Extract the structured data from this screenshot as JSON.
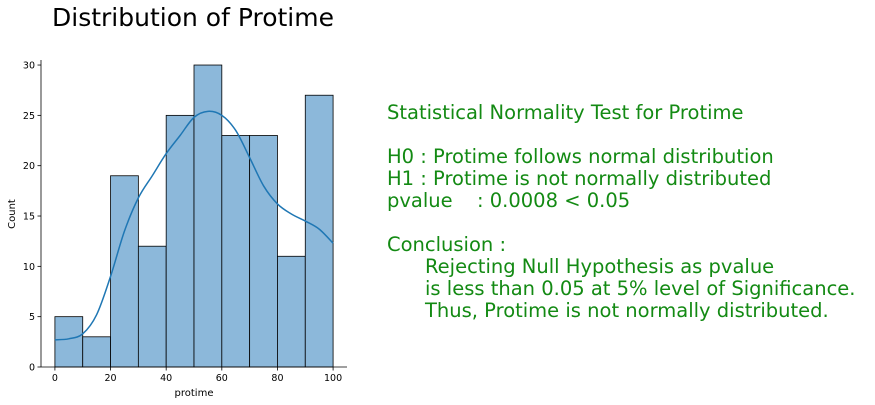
{
  "title": "Distribution of Protime",
  "chart_data": {
    "type": "histogram",
    "title": "Distribution of Protime",
    "xlabel": "protime",
    "ylabel": "Count",
    "xlim": [
      -5,
      105
    ],
    "ylim": [
      0,
      30.5
    ],
    "x_ticks": [
      0,
      20,
      40,
      60,
      80,
      100
    ],
    "y_ticks": [
      0,
      5,
      10,
      15,
      20,
      25,
      30
    ],
    "bins": [
      {
        "start": 0,
        "end": 10,
        "count": 5
      },
      {
        "start": 10,
        "end": 20,
        "count": 3
      },
      {
        "start": 20,
        "end": 30,
        "count": 19
      },
      {
        "start": 30,
        "end": 40,
        "count": 12
      },
      {
        "start": 40,
        "end": 50,
        "count": 25
      },
      {
        "start": 50,
        "end": 60,
        "count": 30
      },
      {
        "start": 60,
        "end": 70,
        "count": 23
      },
      {
        "start": 70,
        "end": 80,
        "count": 23
      },
      {
        "start": 80,
        "end": 90,
        "count": 11
      },
      {
        "start": 90,
        "end": 100,
        "count": 27
      }
    ],
    "kde": {
      "x": [
        0,
        5,
        10,
        15,
        20,
        25,
        30,
        35,
        40,
        45,
        50,
        55,
        60,
        65,
        70,
        75,
        80,
        85,
        90,
        95,
        100
      ],
      "y": [
        2.7,
        2.8,
        3.3,
        5.2,
        9,
        13.5,
        16.8,
        19,
        21.2,
        23,
        24.8,
        25.4,
        25,
        23.5,
        20.8,
        18,
        16.2,
        15.2,
        14.5,
        13.7,
        12.3
      ]
    },
    "colors": {
      "bar_fill": "#8cb8da",
      "bar_edge": "#000000",
      "kde": "#1f77b4"
    },
    "grid": false
  },
  "stats": {
    "heading": "Statistical Normality Test for Protime",
    "h0": "H0 : Protime follows normal distribution",
    "h1": "H1 : Protime is not normally distributed",
    "pvalue_label": "pvalue",
    "pvalue_text": ": 0.0008 < 0.05",
    "conclusion_label": "Conclusion :",
    "conclusion_lines": [
      "Rejecting Null Hypothesis as pvalue",
      "is less than 0.05 at 5% level of Significance.",
      "Thus, Protime is not normally distributed."
    ],
    "color": "#138a13"
  }
}
